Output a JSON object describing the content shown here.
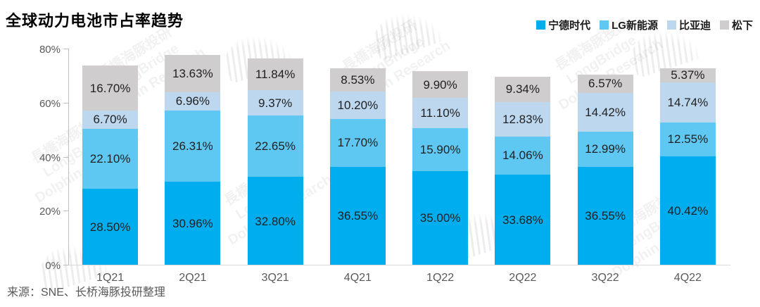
{
  "title": "全球动力电池市占率趋势",
  "source": "来源：SNE、长桥海豚投研整理",
  "watermark": {
    "line1": "長橋海豚投研",
    "line2": "LongBridge",
    "line3": "Dolphin Research"
  },
  "chart_data": {
    "type": "bar",
    "stacked": true,
    "title": "全球动力电池市占率趋势",
    "categories": [
      "1Q21",
      "2Q21",
      "3Q21",
      "4Q21",
      "1Q22",
      "2Q22",
      "3Q22",
      "4Q22"
    ],
    "series": [
      {
        "name": "宁德时代",
        "color": "#00AEEF",
        "values": [
          28.5,
          30.96,
          32.8,
          36.55,
          35.0,
          33.68,
          36.55,
          40.42
        ]
      },
      {
        "name": "LG新能源",
        "color": "#5EC8F2",
        "values": [
          22.1,
          26.31,
          22.65,
          17.7,
          15.9,
          14.06,
          12.99,
          12.55
        ]
      },
      {
        "name": "比亚迪",
        "color": "#BDD7EE",
        "values": [
          6.7,
          6.96,
          9.37,
          10.2,
          11.1,
          12.83,
          14.42,
          14.74
        ]
      },
      {
        "name": "松下",
        "color": "#CFCDCD",
        "values": [
          16.7,
          13.63,
          11.84,
          8.53,
          9.9,
          9.34,
          6.57,
          5.37
        ]
      }
    ],
    "y_ticks": [
      "0%",
      "20%",
      "40%",
      "60%",
      "80%"
    ],
    "ylim": [
      0,
      80
    ],
    "xlabel": "",
    "ylabel": "",
    "label_format": "percent_2dp",
    "data_labels": true,
    "grid": false,
    "legend_position": "top-right"
  }
}
